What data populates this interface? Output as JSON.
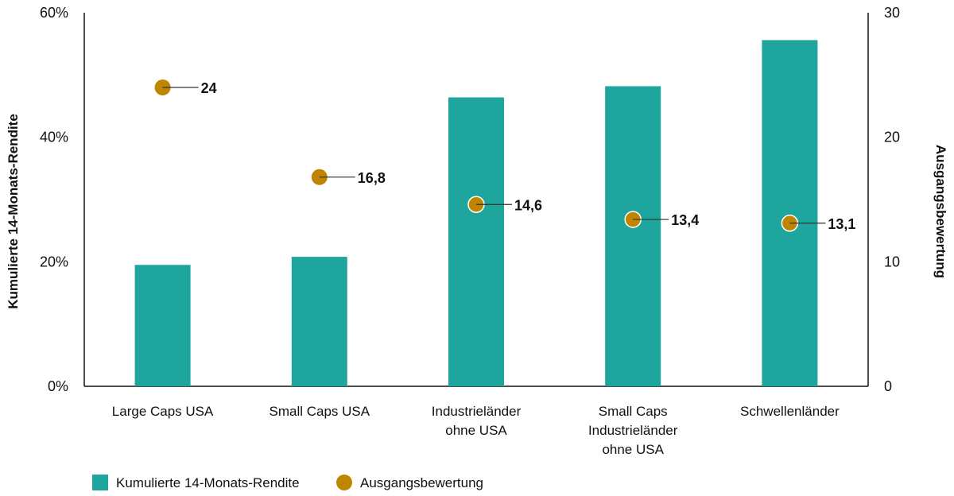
{
  "chart_data": {
    "type": "bar+scatter",
    "categories": [
      [
        "Large Caps USA"
      ],
      [
        "Small Caps USA"
      ],
      [
        "Industrieländer",
        "ohne USA"
      ],
      [
        "Small Caps",
        "Industrieländer",
        "ohne USA"
      ],
      [
        "Schwellenländer"
      ]
    ],
    "series": [
      {
        "name": "Kumulierte 14-Monats-Rendite",
        "type": "bar",
        "axis": "left",
        "values": [
          19.5,
          20.8,
          46.4,
          48.2,
          55.6
        ],
        "color": "#1ea59e"
      },
      {
        "name": "Ausgangsbewertung",
        "type": "scatter",
        "axis": "right",
        "values": [
          24,
          16.8,
          14.6,
          13.4,
          13.1
        ],
        "labels": [
          "24",
          "16,8",
          "14,6",
          "13,4",
          "13,1"
        ],
        "color": "#c08500"
      }
    ],
    "ylabel": "Kumulierte 14-Monats-Rendite",
    "y2label": "Ausgangsbewertung",
    "ylim": [
      0,
      60
    ],
    "y2lim": [
      0,
      30
    ],
    "yticks": [
      "0%",
      "20%",
      "40%",
      "60%"
    ],
    "y2ticks": [
      "0",
      "10",
      "20",
      "30"
    ],
    "legend": "bottom-left",
    "grid": false
  }
}
